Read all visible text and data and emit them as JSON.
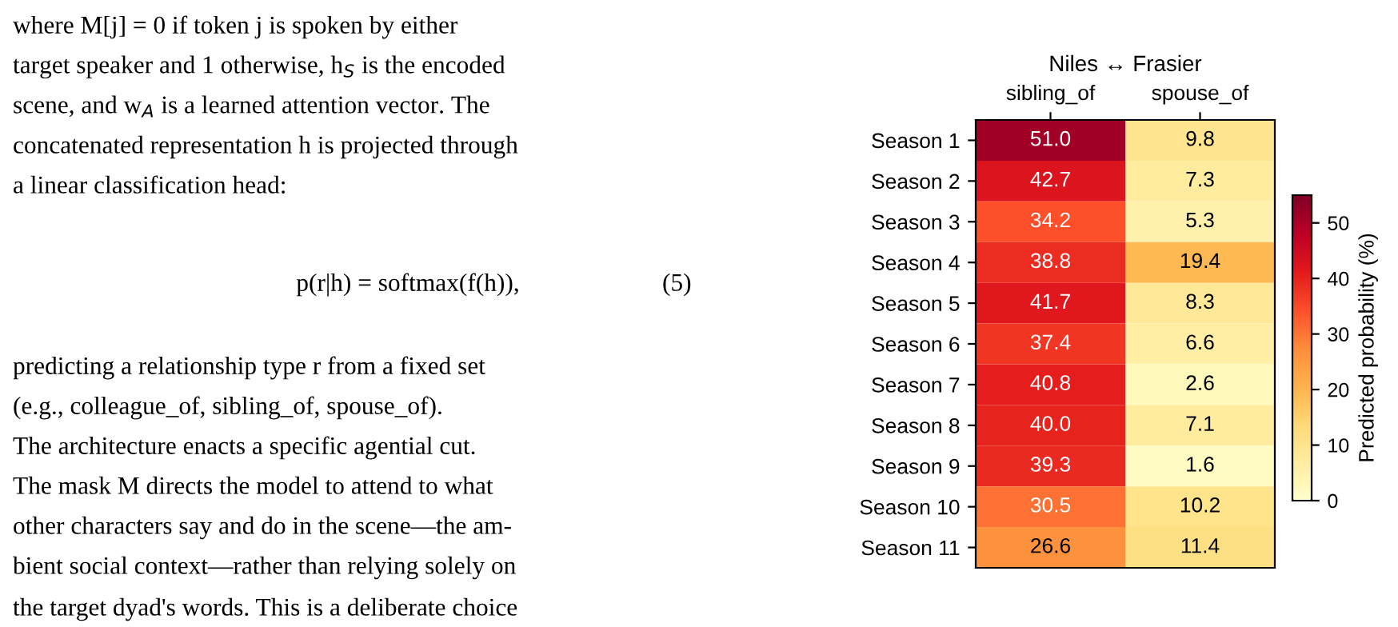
{
  "chart_data": {
    "type": "heatmap",
    "title": "Niles ↔ Frasier",
    "categories": [
      "sibling_of",
      "spouse_of"
    ],
    "y_categories": [
      "Season 1",
      "Season 2",
      "Season 3",
      "Season 4",
      "Season 5",
      "Season 6",
      "Season 7",
      "Season 8",
      "Season 9",
      "Season 10",
      "Season 11"
    ],
    "cells": [
      [
        51.0,
        9.8
      ],
      [
        42.7,
        7.3
      ],
      [
        34.2,
        5.3
      ],
      [
        38.8,
        19.4
      ],
      [
        41.7,
        8.3
      ],
      [
        37.4,
        6.6
      ],
      [
        40.8,
        2.6
      ],
      [
        40.0,
        7.1
      ],
      [
        39.3,
        1.6
      ],
      [
        30.5,
        10.2
      ],
      [
        26.6,
        11.4
      ]
    ],
    "cell_labels": [
      [
        "51.0",
        "9.8"
      ],
      [
        "42.7",
        "7.3"
      ],
      [
        "34.2",
        "5.3"
      ],
      [
        "38.8",
        "19.4"
      ],
      [
        "41.7",
        "8.3"
      ],
      [
        "37.4",
        "6.6"
      ],
      [
        "40.8",
        "2.6"
      ],
      [
        "40.0",
        "7.1"
      ],
      [
        "39.3",
        "1.6"
      ],
      [
        "30.5",
        "10.2"
      ],
      [
        "26.6",
        "11.4"
      ]
    ],
    "clabel": "Predicted probability (%)",
    "clim": [
      0,
      55
    ],
    "cticks": [
      0,
      10,
      20,
      30,
      40,
      50
    ],
    "annotations": [
      "where M[j] = 0 if token j is spoken by either",
      "target speaker and 1 otherwise, h$_{S}$ is the encoded",
      "scene, and w$_{A}$ is a learned attention vector. The",
      "concatenated representation h is projected through",
      "a linear classification head:",
      "p(r|h) = softmax(f(h)),",
      "(5)",
      "predicting a relationship type r from a fixed set",
      "(e.g., colleague_of, sibling_of, spouse_of).",
      "The architecture enacts a specific agential cut.",
      "The mask M directs the model to attend to what",
      "other characters say and do in the scene—the am-",
      "bient social context—rather than relying solely on",
      "the target dyad's words. This is a deliberate choice"
    ]
  }
}
